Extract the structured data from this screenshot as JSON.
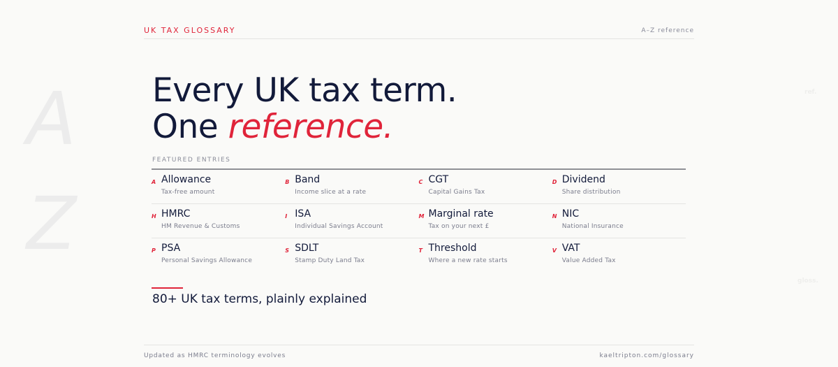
{
  "header": {
    "brand": "UK TAX GLOSSARY",
    "right": "A–Z reference"
  },
  "decor": {
    "letter_top": "A",
    "letter_bottom": "Z",
    "ghost_top": "ref.",
    "ghost_bottom": "gloss."
  },
  "hero": {
    "line1": "Every UK tax term.",
    "line2_plain": "One ",
    "line2_accent": "reference."
  },
  "featured": {
    "label": "FEATURED ENTRIES",
    "rows": [
      [
        {
          "letter": "A",
          "term": "Allowance",
          "desc": "Tax-free amount"
        },
        {
          "letter": "B",
          "term": "Band",
          "desc": "Income slice at a rate"
        },
        {
          "letter": "C",
          "term": "CGT",
          "desc": "Capital Gains Tax"
        },
        {
          "letter": "D",
          "term": "Dividend",
          "desc": "Share distribution"
        }
      ],
      [
        {
          "letter": "H",
          "term": "HMRC",
          "desc": "HM Revenue & Customs"
        },
        {
          "letter": "I",
          "term": "ISA",
          "desc": "Individual Savings Account"
        },
        {
          "letter": "M",
          "term": "Marginal rate",
          "desc": "Tax on your next £"
        },
        {
          "letter": "N",
          "term": "NIC",
          "desc": "National Insurance"
        }
      ],
      [
        {
          "letter": "P",
          "term": "PSA",
          "desc": "Personal Savings Allowance"
        },
        {
          "letter": "S",
          "term": "SDLT",
          "desc": "Stamp Duty Land Tax"
        },
        {
          "letter": "T",
          "term": "Threshold",
          "desc": "Where a new rate starts"
        },
        {
          "letter": "V",
          "term": "VAT",
          "desc": "Value Added Tax"
        }
      ]
    ]
  },
  "tagline": "80+ UK tax terms, plainly explained",
  "footer": {
    "left": "Updated as HMRC terminology evolves",
    "right": "kaeltripton.com/glossary"
  },
  "colors": {
    "accent": "#e0243a",
    "ink": "#121a3a",
    "background": "#fafaf8"
  }
}
